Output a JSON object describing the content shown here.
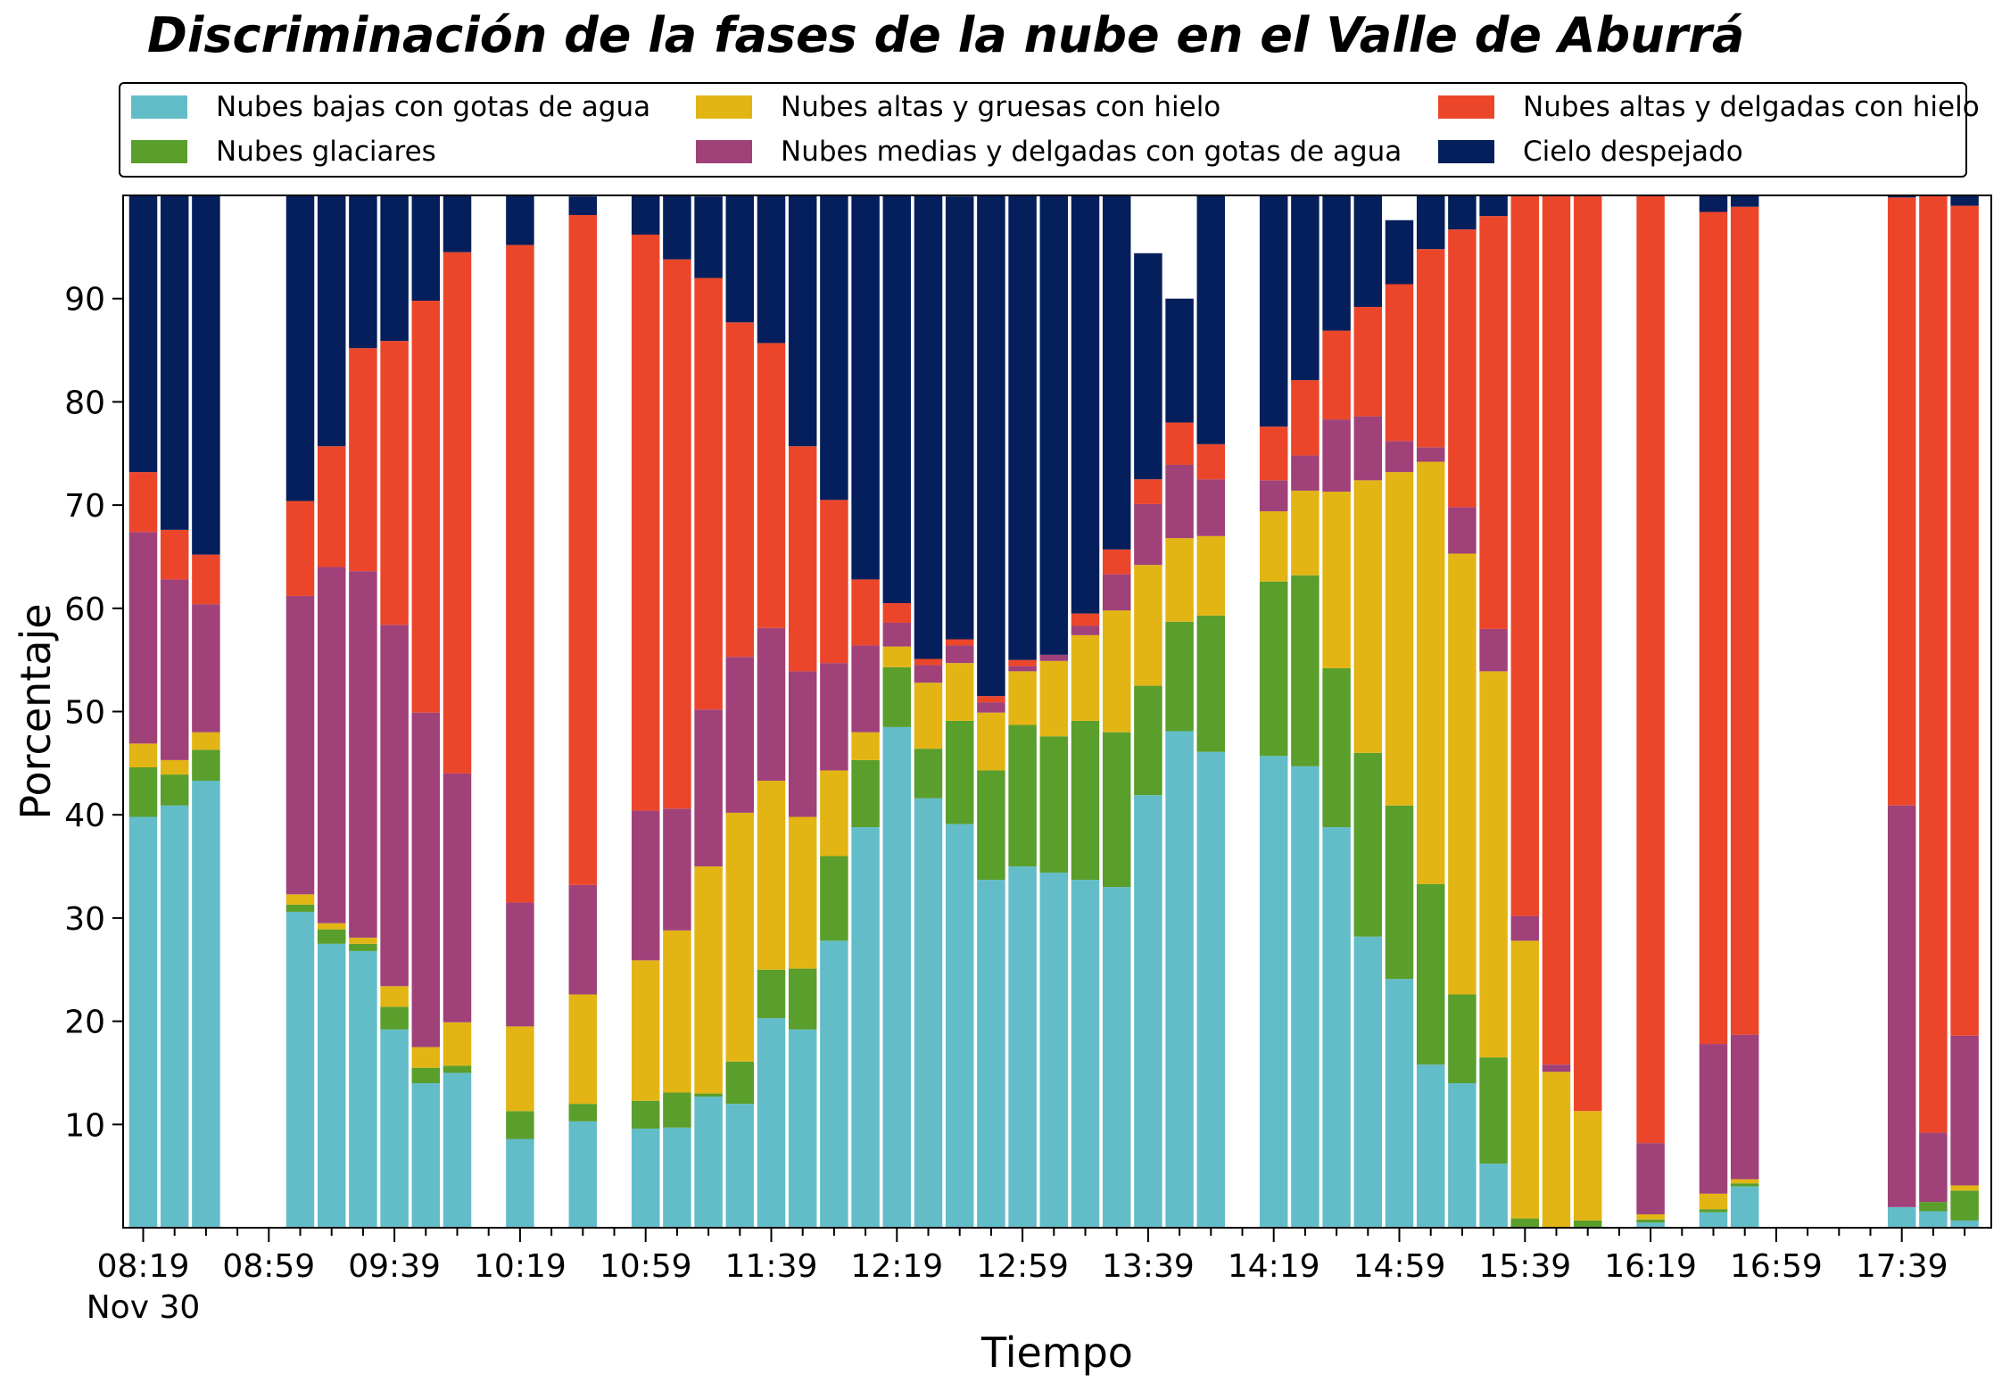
{
  "title": "Discriminación de la fases de la nube en el Valle de Aburrá",
  "chart_data": {
    "type": "bar",
    "stacked": true,
    "xlabel": "Tiempo",
    "ylabel": "Porcentaje",
    "ylim": [
      0,
      100
    ],
    "y_ticks": [
      10,
      20,
      30,
      40,
      50,
      60,
      70,
      80,
      90
    ],
    "x_tick_labels": [
      "08:19",
      "08:59",
      "09:39",
      "10:19",
      "10:59",
      "11:39",
      "12:19",
      "12:59",
      "13:39",
      "14:19",
      "14:59",
      "15:39",
      "16:19",
      "16:59",
      "17:39"
    ],
    "x_date_label": "Nov 30",
    "legend_position": "top",
    "categories": [
      "08:19",
      "08:29",
      "08:39",
      "08:49",
      "08:59",
      "09:09",
      "09:19",
      "09:29",
      "09:39",
      "09:49",
      "09:59",
      "10:09",
      "10:19",
      "10:29",
      "10:39",
      "10:49",
      "10:59",
      "11:09",
      "11:19",
      "11:29",
      "11:39",
      "11:49",
      "11:59",
      "12:09",
      "12:19",
      "12:29",
      "12:39",
      "12:49",
      "12:59",
      "13:09",
      "13:19",
      "13:29",
      "13:39",
      "13:49",
      "13:59",
      "14:09",
      "14:19",
      "14:29",
      "14:39",
      "14:49",
      "14:59",
      "15:09",
      "15:19",
      "15:29",
      "15:39",
      "15:49",
      "15:59",
      "16:09",
      "16:19",
      "16:29",
      "16:39",
      "16:49",
      "16:59",
      "17:09",
      "17:19",
      "17:29",
      "17:39",
      "17:49",
      "17:59"
    ],
    "series": [
      {
        "name": "Nubes bajas con gotas de agua",
        "color": "#63bdc9",
        "values": [
          39.8,
          40.9,
          43.3,
          null,
          null,
          30.6,
          27.5,
          26.8,
          19.2,
          14.0,
          15.0,
          null,
          8.6,
          null,
          10.3,
          null,
          9.6,
          9.7,
          12.7,
          12.0,
          20.3,
          19.2,
          27.8,
          38.8,
          48.5,
          41.6,
          39.1,
          33.7,
          35.0,
          34.4,
          33.7,
          33.0,
          41.9,
          48.1,
          46.1,
          null,
          45.7,
          44.7,
          38.8,
          28.2,
          24.1,
          15.8,
          14.0,
          6.2,
          0.0,
          0.0,
          0.0,
          null,
          0.5,
          null,
          1.5,
          4.0,
          null,
          null,
          null,
          null,
          2.0,
          1.6,
          0.7
        ]
      },
      {
        "name": "Nubes glaciares",
        "color": "#5a9e2c",
        "values": [
          4.8,
          3.0,
          3.0,
          null,
          null,
          0.7,
          1.4,
          0.7,
          2.2,
          1.5,
          0.7,
          null,
          2.7,
          null,
          1.7,
          null,
          2.7,
          3.4,
          0.3,
          4.1,
          4.7,
          5.9,
          8.2,
          6.5,
          5.8,
          4.8,
          10.0,
          10.6,
          13.7,
          13.2,
          15.4,
          15.0,
          10.6,
          10.6,
          13.2,
          null,
          16.9,
          18.5,
          15.4,
          17.8,
          16.8,
          17.5,
          8.6,
          10.3,
          0.9,
          0.0,
          0.7,
          null,
          0.3,
          null,
          0.3,
          0.3,
          null,
          null,
          null,
          null,
          0.0,
          0.9,
          2.9
        ]
      },
      {
        "name": "Nubes altas y gruesas con hielo",
        "color": "#e3b514",
        "values": [
          2.3,
          1.4,
          1.7,
          null,
          null,
          1.0,
          0.6,
          0.6,
          2.0,
          2.0,
          4.2,
          null,
          8.2,
          null,
          10.6,
          null,
          13.6,
          15.7,
          22.0,
          24.1,
          18.3,
          14.7,
          8.3,
          2.7,
          2.0,
          6.4,
          5.6,
          5.6,
          5.2,
          7.3,
          8.3,
          11.8,
          11.7,
          8.1,
          7.7,
          null,
          6.8,
          8.2,
          17.1,
          26.4,
          32.3,
          40.9,
          42.7,
          37.4,
          26.9,
          15.1,
          10.6,
          null,
          0.5,
          null,
          1.5,
          0.4,
          null,
          null,
          null,
          null,
          0.0,
          0.0,
          0.5
        ]
      },
      {
        "name": "Nubes medias y delgadas con gotas de agua",
        "color": "#a0417a",
        "values": [
          20.5,
          17.5,
          12.4,
          null,
          null,
          28.9,
          34.5,
          35.5,
          35.0,
          32.4,
          24.1,
          null,
          12.0,
          null,
          10.6,
          null,
          14.5,
          11.8,
          15.2,
          15.1,
          14.8,
          14.1,
          10.4,
          8.4,
          2.3,
          1.7,
          1.7,
          1.0,
          0.5,
          0.6,
          0.9,
          3.5,
          5.9,
          7.1,
          5.5,
          null,
          3.0,
          3.4,
          7.0,
          6.2,
          3.0,
          1.4,
          4.5,
          4.1,
          2.4,
          0.7,
          0.0,
          null,
          6.9,
          null,
          14.5,
          14.0,
          null,
          null,
          null,
          null,
          38.9,
          6.7,
          14.5
        ]
      },
      {
        "name": "Nubes altas y delgadas con hielo",
        "color": "#ec462a",
        "values": [
          5.8,
          4.8,
          4.8,
          null,
          null,
          9.2,
          11.7,
          21.6,
          27.5,
          39.9,
          50.5,
          null,
          63.7,
          null,
          64.9,
          null,
          55.8,
          53.2,
          41.8,
          32.4,
          27.6,
          21.8,
          15.8,
          6.4,
          1.9,
          0.6,
          0.6,
          0.6,
          0.6,
          0.0,
          1.2,
          2.4,
          2.4,
          4.1,
          3.4,
          null,
          5.2,
          7.3,
          8.6,
          10.6,
          15.2,
          19.2,
          26.9,
          40.0,
          69.8,
          84.2,
          88.7,
          null,
          91.8,
          null,
          80.6,
          80.2,
          null,
          null,
          null,
          null,
          58.9,
          90.8,
          80.4
        ]
      },
      {
        "name": "Cielo despejado",
        "color": "#051f5c",
        "values": [
          26.8,
          32.4,
          34.8,
          null,
          null,
          29.6,
          24.3,
          14.8,
          14.1,
          10.2,
          5.5,
          null,
          4.8,
          null,
          1.8,
          null,
          3.8,
          6.2,
          7.9,
          12.3,
          14.4,
          24.3,
          29.5,
          37.2,
          39.5,
          44.9,
          42.9,
          48.5,
          45.0,
          44.5,
          40.5,
          34.3,
          21.9,
          12.0,
          24.1,
          null,
          22.4,
          17.9,
          13.1,
          10.8,
          6.2,
          5.2,
          3.3,
          2.0,
          0.0,
          0.0,
          0.0,
          null,
          0.0,
          null,
          1.6,
          1.1,
          null,
          null,
          null,
          null,
          0.2,
          0.0,
          1.0
        ]
      }
    ]
  }
}
